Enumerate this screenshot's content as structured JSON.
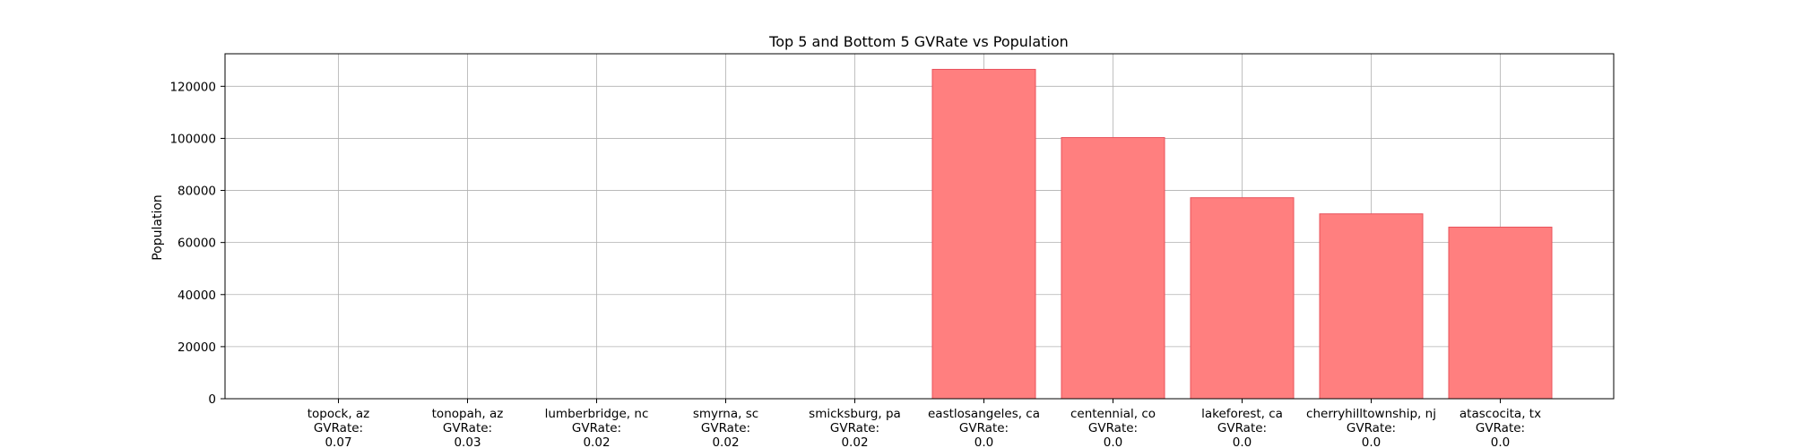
{
  "chart_data": {
    "type": "bar",
    "title": "Top 5 and Bottom 5 GVRate vs Population",
    "xlabel": "",
    "ylabel": "Population",
    "ylim": [
      0,
      132500
    ],
    "yticks": [
      0,
      20000,
      40000,
      60000,
      80000,
      100000,
      120000
    ],
    "grid": true,
    "bar_color": "#ff7f7f",
    "bar_edge_color": "#e8505a",
    "categories": [
      {
        "name": "topock, az",
        "rate_label": "GVRate:",
        "rate": "0.07"
      },
      {
        "name": "tonopah, az",
        "rate_label": "GVRate:",
        "rate": "0.03"
      },
      {
        "name": "lumberbridge, nc",
        "rate_label": "GVRate:",
        "rate": "0.02"
      },
      {
        "name": "smyrna, sc",
        "rate_label": "GVRate:",
        "rate": "0.02"
      },
      {
        "name": "smicksburg, pa",
        "rate_label": "GVRate:",
        "rate": "0.02"
      },
      {
        "name": "eastlosangeles, ca",
        "rate_label": "GVRate:",
        "rate": "0.0"
      },
      {
        "name": "centennial, co",
        "rate_label": "GVRate:",
        "rate": "0.0"
      },
      {
        "name": "lakeforest, ca",
        "rate_label": "GVRate:",
        "rate": "0.0"
      },
      {
        "name": "cherryhilltownship, nj",
        "rate_label": "GVRate:",
        "rate": "0.0"
      },
      {
        "name": "atascocita, tx",
        "rate_label": "GVRate:",
        "rate": "0.0"
      }
    ],
    "values": [
      0,
      0,
      0,
      0,
      0,
      126500,
      100300,
      77200,
      71000,
      65900
    ]
  }
}
